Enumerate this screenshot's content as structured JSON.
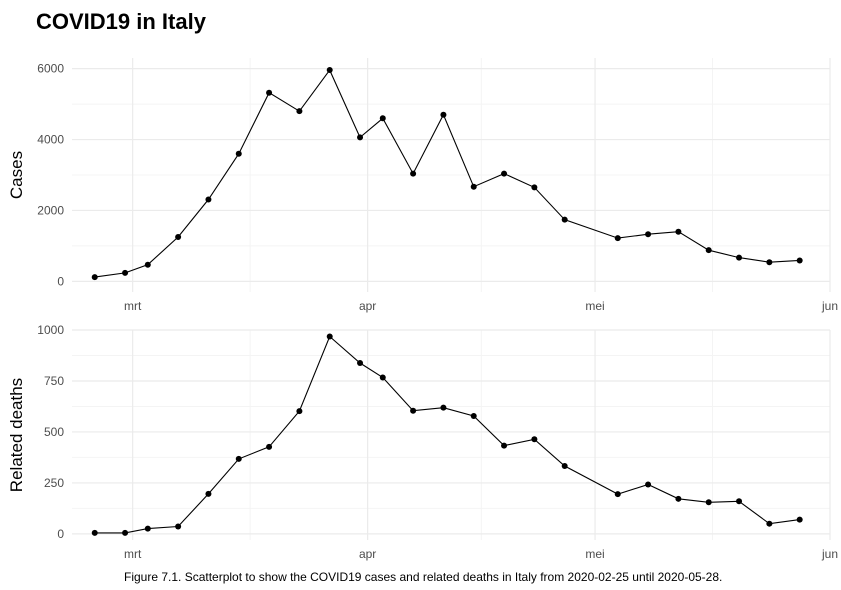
{
  "title": "COVID19 in Italy",
  "caption": "Figure 7.1. Scatterplot to show the COVID19 cases and related deaths in Italy from 2020-02-25 until 2020-05-28.",
  "colors": {
    "line": "#000000",
    "grid_major": "#ebebeb",
    "grid_minor": "#f4f4f4",
    "text_axis": "#4d4d4d"
  },
  "chart_data": [
    {
      "type": "line",
      "ylabel": "Cases",
      "xlabel": "",
      "x_ticks": [
        {
          "date": "2020-03-01",
          "label": "mrt"
        },
        {
          "date": "2020-04-01",
          "label": "apr"
        },
        {
          "date": "2020-05-01",
          "label": "mei"
        },
        {
          "date": "2020-06-01",
          "label": "jun"
        }
      ],
      "y_ticks": [
        0,
        2000,
        4000,
        6000
      ],
      "xlim": [
        "2020-02-22",
        "2020-06-01"
      ],
      "ylim": [
        -300,
        6300
      ],
      "grid": true,
      "markers": true,
      "series": [
        {
          "dates": [
            "2020-02-25",
            "2020-02-29",
            "2020-03-03",
            "2020-03-07",
            "2020-03-11",
            "2020-03-15",
            "2020-03-19",
            "2020-03-23",
            "2020-03-27",
            "2020-03-31",
            "2020-04-03",
            "2020-04-07",
            "2020-04-11",
            "2020-04-15",
            "2020-04-19",
            "2020-04-23",
            "2020-04-27",
            "2020-05-04",
            "2020-05-08",
            "2020-05-12",
            "2020-05-16",
            "2020-05-20",
            "2020-05-24",
            "2020-05-28"
          ],
          "values": [
            120,
            240,
            470,
            1250,
            2310,
            3600,
            5320,
            4800,
            5960,
            4060,
            4600,
            3040,
            4700,
            2670,
            3040,
            2650,
            1740,
            1220,
            1330,
            1400,
            880,
            670,
            540,
            590
          ]
        }
      ]
    },
    {
      "type": "line",
      "ylabel": "Related deaths",
      "xlabel": "",
      "x_ticks": [
        {
          "date": "2020-03-01",
          "label": "mrt"
        },
        {
          "date": "2020-04-01",
          "label": "apr"
        },
        {
          "date": "2020-05-01",
          "label": "mei"
        },
        {
          "date": "2020-06-01",
          "label": "jun"
        }
      ],
      "y_ticks": [
        0,
        250,
        500,
        750,
        1000
      ],
      "xlim": [
        "2020-02-22",
        "2020-06-01"
      ],
      "ylim": [
        -30,
        1000
      ],
      "grid": true,
      "markers": true,
      "series": [
        {
          "dates": [
            "2020-02-25",
            "2020-02-29",
            "2020-03-03",
            "2020-03-07",
            "2020-03-11",
            "2020-03-15",
            "2020-03-19",
            "2020-03-23",
            "2020-03-27",
            "2020-03-31",
            "2020-04-03",
            "2020-04-07",
            "2020-04-11",
            "2020-04-15",
            "2020-04-19",
            "2020-04-23",
            "2020-04-27",
            "2020-05-04",
            "2020-05-08",
            "2020-05-12",
            "2020-05-16",
            "2020-05-20",
            "2020-05-24",
            "2020-05-28"
          ],
          "values": [
            5,
            5,
            26,
            36,
            196,
            368,
            427,
            602,
            968,
            838,
            767,
            604,
            619,
            578,
            433,
            464,
            333,
            195,
            242,
            172,
            155,
            160,
            50,
            70
          ]
        }
      ]
    }
  ]
}
